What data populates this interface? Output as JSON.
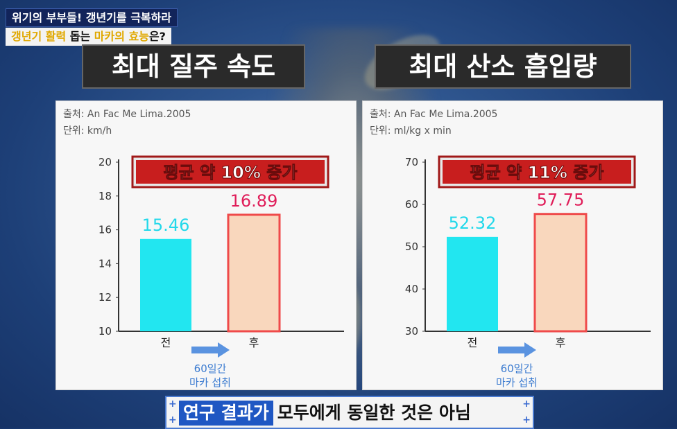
{
  "show": {
    "title": "위기의 부부들! 갱년기를 극복하라",
    "subtitle_part1": "갱년기 활력",
    "subtitle_part2": " 돕는 ",
    "subtitle_part3": "마카의 효능",
    "subtitle_part4": "은?"
  },
  "panels": [
    {
      "heading": "최대 질주 속도",
      "source": "출처: An Fac Me Lima.2005",
      "unit": "단위: km/h",
      "badge": "평균 약 10% 증가",
      "arrow_label_line1": "60일간",
      "arrow_label_line2": "마카 섭취"
    },
    {
      "heading": "최대 산소 흡입량",
      "source": "출처: An Fac Me Lima.2005",
      "unit": "단위: ml/kg x min",
      "badge": "평균 약 11% 증가",
      "arrow_label_line1": "60일간",
      "arrow_label_line2": "마카 섭취"
    }
  ],
  "chart_data": [
    {
      "type": "bar",
      "title": "최대 질주 속도",
      "ylabel": "km/h",
      "categories": [
        "전",
        "후"
      ],
      "values": [
        15.46,
        16.89
      ],
      "value_labels": [
        "15.46",
        "16.89"
      ],
      "ylim": [
        10,
        20
      ],
      "yticks": [
        10,
        12,
        14,
        16,
        18,
        20
      ],
      "colors": [
        "#22e6f0",
        "#f9d7bd"
      ],
      "label_colors": [
        "#22d8ea",
        "#e01e5a"
      ]
    },
    {
      "type": "bar",
      "title": "최대 산소 흡입량",
      "ylabel": "ml/kg x min",
      "categories": [
        "전",
        "후"
      ],
      "values": [
        52.32,
        57.75
      ],
      "value_labels": [
        "52.32",
        "57.75"
      ],
      "ylim": [
        30,
        70
      ],
      "yticks": [
        30,
        40,
        50,
        60,
        70
      ],
      "colors": [
        "#22e6f0",
        "#f9d7bd"
      ],
      "label_colors": [
        "#22d8ea",
        "#e01e5a"
      ]
    }
  ],
  "caption": {
    "highlight": "연구 결과가",
    "rest": "모두에게 동일한 것은 아님"
  }
}
